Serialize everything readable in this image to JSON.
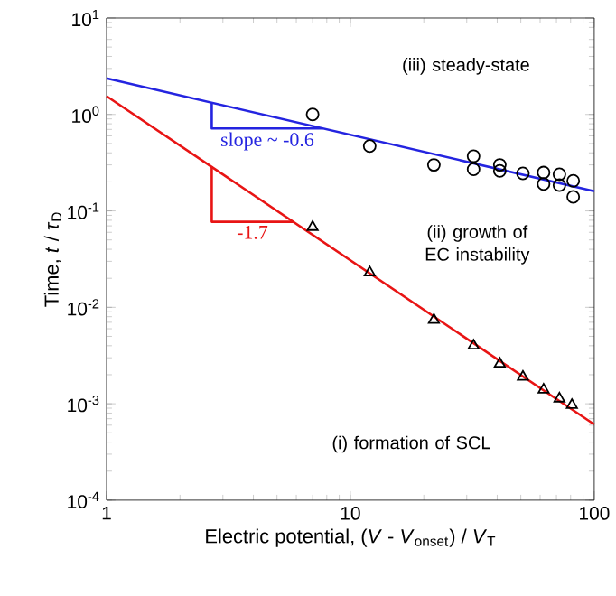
{
  "chart_data": {
    "type": "scatter",
    "xlabel": "Electric potential, (*V* - *V*$_{onset}$) / *V*$_{T}$",
    "ylabel": "Time, *t* / *τ*$_{D}$",
    "log": "xy",
    "xlim": [
      1,
      100
    ],
    "ylim": [
      0.0001,
      10
    ],
    "xticks": [
      1,
      10,
      100
    ],
    "yticks": [
      {
        "value": 0.0001,
        "label": "10$^{-4}$"
      },
      {
        "value": 0.001,
        "label": "10$^{-3}$"
      },
      {
        "value": 0.01,
        "label": "10$^{-2}$"
      },
      {
        "value": 0.1,
        "label": "10$^{-1}$"
      },
      {
        "value": 1,
        "label": "10$^{0}$"
      },
      {
        "value": 10,
        "label": "10$^{1}$"
      }
    ],
    "series": [
      {
        "type": "line",
        "color": "#2424e0",
        "x": [
          1,
          100
        ],
        "values": [
          2.37,
          0.16
        ]
      },
      {
        "type": "line",
        "color": "#e81414",
        "x": [
          1,
          100
        ],
        "values": [
          1.55,
          0.00061
        ]
      },
      {
        "color": "#000000",
        "marker": "circle",
        "x": [
          7,
          12,
          22,
          32,
          32,
          41,
          41,
          51,
          62,
          62,
          72,
          72,
          82,
          82
        ],
        "values": [
          1.0,
          0.47,
          0.3,
          0.37,
          0.27,
          0.3,
          0.26,
          0.245,
          0.25,
          0.19,
          0.24,
          0.185,
          0.205,
          0.14
        ]
      },
      {
        "color": "#000000",
        "marker": "triangle",
        "x": [
          7,
          12,
          22,
          32,
          41,
          51,
          62,
          72,
          81
        ],
        "values": [
          0.068,
          0.023,
          0.0074,
          0.004,
          0.0026,
          0.0019,
          0.0014,
          0.00113,
          0.00097
        ]
      }
    ],
    "annotations": [
      "(iii) steady-state",
      "(ii) growth of EC instability",
      "(i) formation of SCL",
      {
        "text": "slope ~ -0.6",
        "x": 2.7,
        "y": 1.32
      },
      {
        "text": "-1.7",
        "x": 2.7,
        "y": 0.29
      }
    ]
  }
}
